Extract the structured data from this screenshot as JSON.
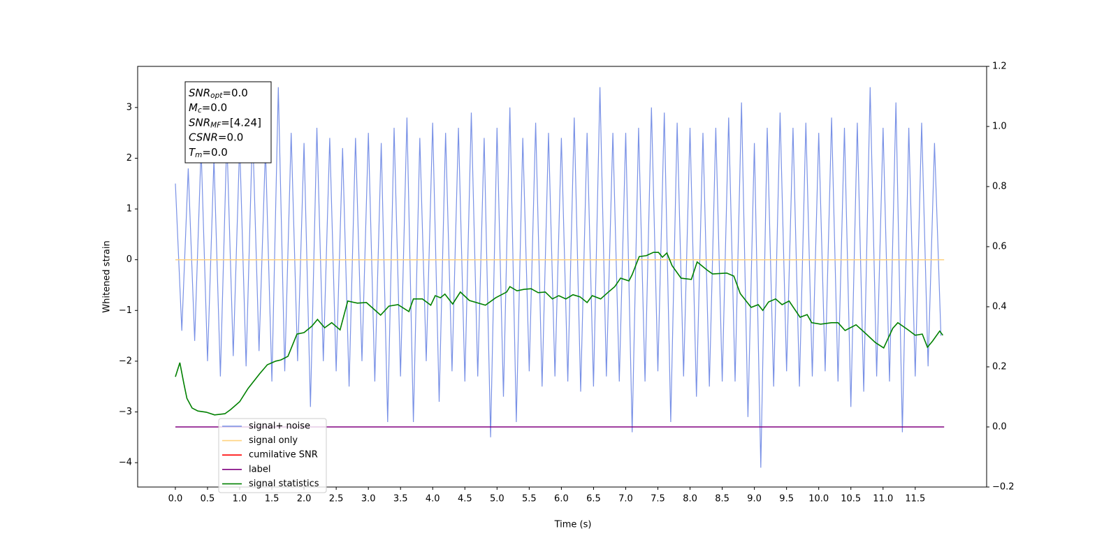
{
  "chart_data": {
    "type": "line",
    "xlabel": "Time (s)",
    "ylabel": "Whitened strain",
    "xlim": [
      -0.586,
      12.61
    ],
    "ylim": [
      -4.48,
      3.81
    ],
    "y2lim": [
      -0.2,
      1.2
    ],
    "xticks": [
      {
        "value": 0,
        "label": "0.0"
      },
      0.5,
      {
        "value": 1,
        "label": "1.0"
      },
      1.5,
      {
        "value": 2,
        "label": "2.0"
      },
      2.5,
      {
        "value": 3,
        "label": "3.0"
      },
      3.5,
      {
        "value": 4,
        "label": "4.0"
      },
      4.5,
      {
        "value": 5,
        "label": "5.0"
      },
      5.5,
      {
        "value": 6,
        "label": "6.0"
      },
      6.5,
      {
        "value": 7,
        "label": "7.0"
      },
      7.5,
      {
        "value": 8,
        "label": "8.0"
      },
      8.5,
      {
        "value": 9,
        "label": "9.0"
      },
      9.5,
      {
        "value": 10,
        "label": "10.0"
      },
      10.5,
      {
        "value": 11,
        "label": "11.0"
      },
      11.5
    ],
    "yticks": [
      {
        "value": -4,
        "label": "−4"
      },
      {
        "value": -3,
        "label": "−3"
      },
      {
        "value": -2,
        "label": "−2"
      },
      {
        "value": -1,
        "label": "−1"
      },
      0,
      1,
      2,
      3
    ],
    "y2ticks": [
      {
        "value": -0.2,
        "label": "−0.2"
      },
      {
        "value": 0,
        "label": "0.0"
      },
      0.2,
      0.4,
      0.6,
      0.8,
      {
        "value": 1,
        "label": "1.0"
      },
      1.2
    ],
    "legend_loc": "lower left",
    "annotation": [
      [
        "SNR",
        "opt",
        "=0.0"
      ],
      [
        "M",
        "c",
        "=0.0"
      ],
      [
        "SNR",
        "MF",
        "=[4.24]"
      ],
      [
        "CSNR",
        "",
        "=0.0"
      ],
      [
        "T",
        "m",
        "=0.0"
      ]
    ],
    "series": [
      {
        "name": "signal+ noise",
        "color": "#7991e6",
        "x": [
          0,
          0.1,
          0.2,
          0.3,
          0.4,
          0.5,
          0.6,
          0.7,
          0.8,
          0.9,
          1,
          1.1,
          1.2,
          1.3,
          1.4,
          1.5,
          1.6,
          1.7,
          1.8,
          1.9,
          2,
          2.1,
          2.2,
          2.3,
          2.4,
          2.5,
          2.6,
          2.7,
          2.8,
          2.9,
          3,
          3.1,
          3.2,
          3.3,
          3.4,
          3.5,
          3.6,
          3.7,
          3.8,
          3.9,
          4,
          4.1,
          4.2,
          4.3,
          4.4,
          4.5,
          4.6,
          4.7,
          4.8,
          4.9,
          5,
          5.1,
          5.2,
          5.3,
          5.4,
          5.5,
          5.6,
          5.7,
          5.8,
          5.9,
          6,
          6.1,
          6.2,
          6.3,
          6.4,
          6.5,
          6.6,
          6.7,
          6.8,
          6.9,
          7,
          7.1,
          7.2,
          7.3,
          7.4,
          7.5,
          7.6,
          7.7,
          7.8,
          7.9,
          8,
          8.1,
          8.2,
          8.3,
          8.4,
          8.5,
          8.6,
          8.7,
          8.8,
          8.9,
          9,
          9.1,
          9.2,
          9.3,
          9.4,
          9.5,
          9.6,
          9.7,
          9.8,
          9.9,
          10,
          10.1,
          10.2,
          10.3,
          10.4,
          10.5,
          10.6,
          10.7,
          10.8,
          10.9,
          11,
          11.1,
          11.2,
          11.3,
          11.4,
          11.5,
          11.6,
          11.7,
          11.8,
          11.9
        ],
        "values": [
          1.5,
          -1.4,
          1.8,
          -1.6,
          2.2,
          -2.0,
          2.0,
          -2.3,
          2.4,
          -1.9,
          2.3,
          -2.1,
          2.6,
          -1.8,
          2.2,
          -2.4,
          3.4,
          -2.2,
          2.5,
          -2.0,
          2.3,
          -2.9,
          2.6,
          -2.0,
          2.4,
          -2.2,
          2.2,
          -2.5,
          2.4,
          -2.0,
          2.5,
          -2.4,
          2.3,
          -3.2,
          2.6,
          -2.3,
          2.8,
          -3.2,
          2.4,
          -2.0,
          2.7,
          -2.8,
          2.5,
          -2.2,
          2.6,
          -2.4,
          2.9,
          -2.3,
          2.4,
          -3.5,
          2.6,
          -2.7,
          3.0,
          -3.2,
          2.4,
          -2.2,
          2.7,
          -2.5,
          2.5,
          -2.3,
          2.4,
          -2.4,
          2.8,
          -2.6,
          2.5,
          -2.5,
          3.4,
          -2.3,
          2.5,
          -2.4,
          2.5,
          -3.4,
          2.6,
          -2.4,
          3.0,
          -2.2,
          2.9,
          -3.2,
          2.7,
          -2.3,
          2.6,
          -2.7,
          2.5,
          -2.5,
          2.6,
          -2.4,
          2.8,
          -2.4,
          3.1,
          -3.1,
          2.3,
          -4.1,
          2.6,
          -2.5,
          2.9,
          -2.2,
          2.6,
          -2.5,
          2.7,
          -2.3,
          2.5,
          -2.2,
          2.8,
          -2.4,
          2.6,
          -2.9,
          2.7,
          -2.6,
          3.4,
          -2.3,
          2.6,
          -2.4,
          3.1,
          -3.4,
          2.6,
          -2.3,
          2.7,
          -2.1,
          2.3,
          -1.5
        ]
      },
      {
        "name": "signal only",
        "color": "#ffd27f",
        "x": [
          0,
          11.95
        ],
        "values": [
          0,
          0
        ]
      },
      {
        "name": "cumilative SNR",
        "color": "#ff0000"
      },
      {
        "name": "label",
        "color": "#800080",
        "axis": "y2",
        "x": [
          0,
          11.95
        ],
        "values": [
          0,
          0
        ]
      },
      {
        "name": "signal statistics",
        "color": "#008000",
        "axis": "y2",
        "x": [
          0,
          0.07,
          0.13,
          0.18,
          0.26,
          0.35,
          0.48,
          0.61,
          0.77,
          0.86,
          1.0,
          1.13,
          1.31,
          1.43,
          1.56,
          1.64,
          1.75,
          1.89,
          2.0,
          2.12,
          2.21,
          2.32,
          2.43,
          2.56,
          2.68,
          2.83,
          2.97,
          3.19,
          3.32,
          3.46,
          3.63,
          3.7,
          3.84,
          3.97,
          4.04,
          4.12,
          4.19,
          4.31,
          4.43,
          4.57,
          4.82,
          4.98,
          5.15,
          5.2,
          5.31,
          5.42,
          5.53,
          5.64,
          5.75,
          5.86,
          5.96,
          6.07,
          6.18,
          6.29,
          6.4,
          6.48,
          6.61,
          6.72,
          6.83,
          6.92,
          7.05,
          7.1,
          7.21,
          7.32,
          7.43,
          7.51,
          7.57,
          7.64,
          7.72,
          7.86,
          8.02,
          8.11,
          8.26,
          8.35,
          8.57,
          8.68,
          8.78,
          8.95,
          9.06,
          9.13,
          9.22,
          9.33,
          9.43,
          9.54,
          9.71,
          9.82,
          9.89,
          10.03,
          10.2,
          10.3,
          10.41,
          10.58,
          10.74,
          10.88,
          11.01,
          11.15,
          11.23,
          11.39,
          11.5,
          11.61,
          11.69,
          11.77,
          11.88,
          11.93
        ],
        "values": [
          0.167,
          0.214,
          0.147,
          0.095,
          0.063,
          0.053,
          0.049,
          0.04,
          0.044,
          0.058,
          0.084,
          0.128,
          0.177,
          0.207,
          0.219,
          0.223,
          0.235,
          0.309,
          0.314,
          0.335,
          0.358,
          0.33,
          0.347,
          0.323,
          0.419,
          0.412,
          0.414,
          0.372,
          0.402,
          0.407,
          0.384,
          0.426,
          0.426,
          0.405,
          0.437,
          0.43,
          0.442,
          0.409,
          0.449,
          0.421,
          0.405,
          0.43,
          0.449,
          0.467,
          0.453,
          0.458,
          0.46,
          0.447,
          0.449,
          0.426,
          0.437,
          0.426,
          0.44,
          0.433,
          0.414,
          0.437,
          0.426,
          0.447,
          0.467,
          0.495,
          0.486,
          0.507,
          0.567,
          0.57,
          0.581,
          0.581,
          0.565,
          0.579,
          0.537,
          0.495,
          0.491,
          0.549,
          0.523,
          0.509,
          0.512,
          0.502,
          0.444,
          0.398,
          0.407,
          0.388,
          0.416,
          0.426,
          0.407,
          0.419,
          0.365,
          0.374,
          0.347,
          0.342,
          0.347,
          0.347,
          0.321,
          0.34,
          0.309,
          0.281,
          0.263,
          0.328,
          0.347,
          0.323,
          0.305,
          0.309,
          0.265,
          0.286,
          0.319,
          0.305
        ]
      }
    ]
  }
}
